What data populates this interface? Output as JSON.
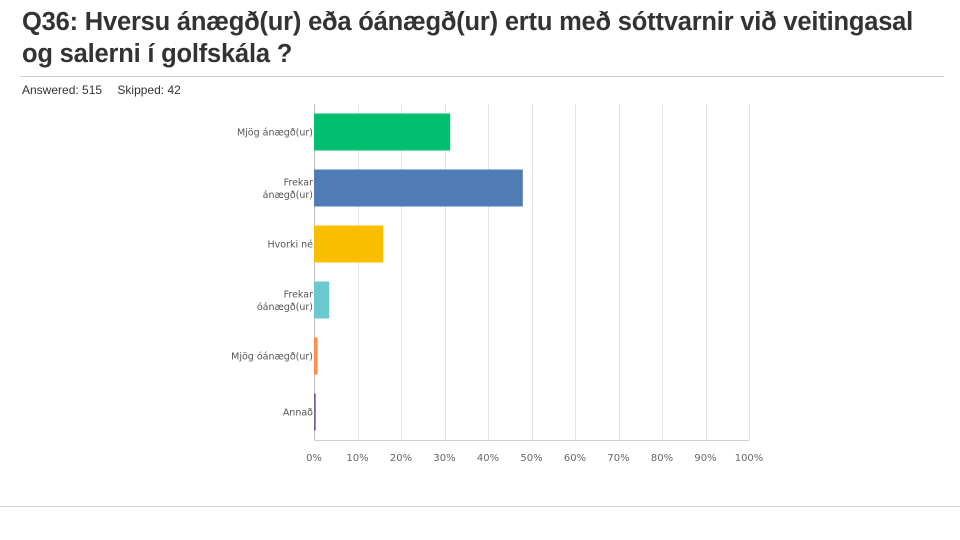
{
  "question": {
    "title": "Q36: Hversu  ánægð(ur) eða óánægð(ur) ertu með sóttvarnir við veitingasal og salerni í golfskála ?"
  },
  "stats": {
    "answered": "Answered: 515",
    "skipped": "Skipped: 42"
  },
  "chart_data": {
    "type": "bar",
    "orientation": "horizontal",
    "categories": [
      [
        "Mjög ánægð(ur)"
      ],
      [
        "Frekar",
        "ánægð(ur)"
      ],
      [
        "Hvorki né"
      ],
      [
        "Frekar",
        "óánægð(ur)"
      ],
      [
        "Mjög óánægð(ur)"
      ],
      [
        "Annað"
      ]
    ],
    "values": [
      31.3,
      48.0,
      15.9,
      3.5,
      0.8,
      0.4
    ],
    "colors": [
      "#00bf6f",
      "#507cb6",
      "#f9be00",
      "#6bc8cd",
      "#ff8b4f",
      "#7d5e90"
    ],
    "xlim": [
      0,
      100
    ],
    "ticks": [
      "0%",
      "10%",
      "20%",
      "30%",
      "40%",
      "50%",
      "60%",
      "70%",
      "80%",
      "90%",
      "100%"
    ],
    "grid": true
  }
}
